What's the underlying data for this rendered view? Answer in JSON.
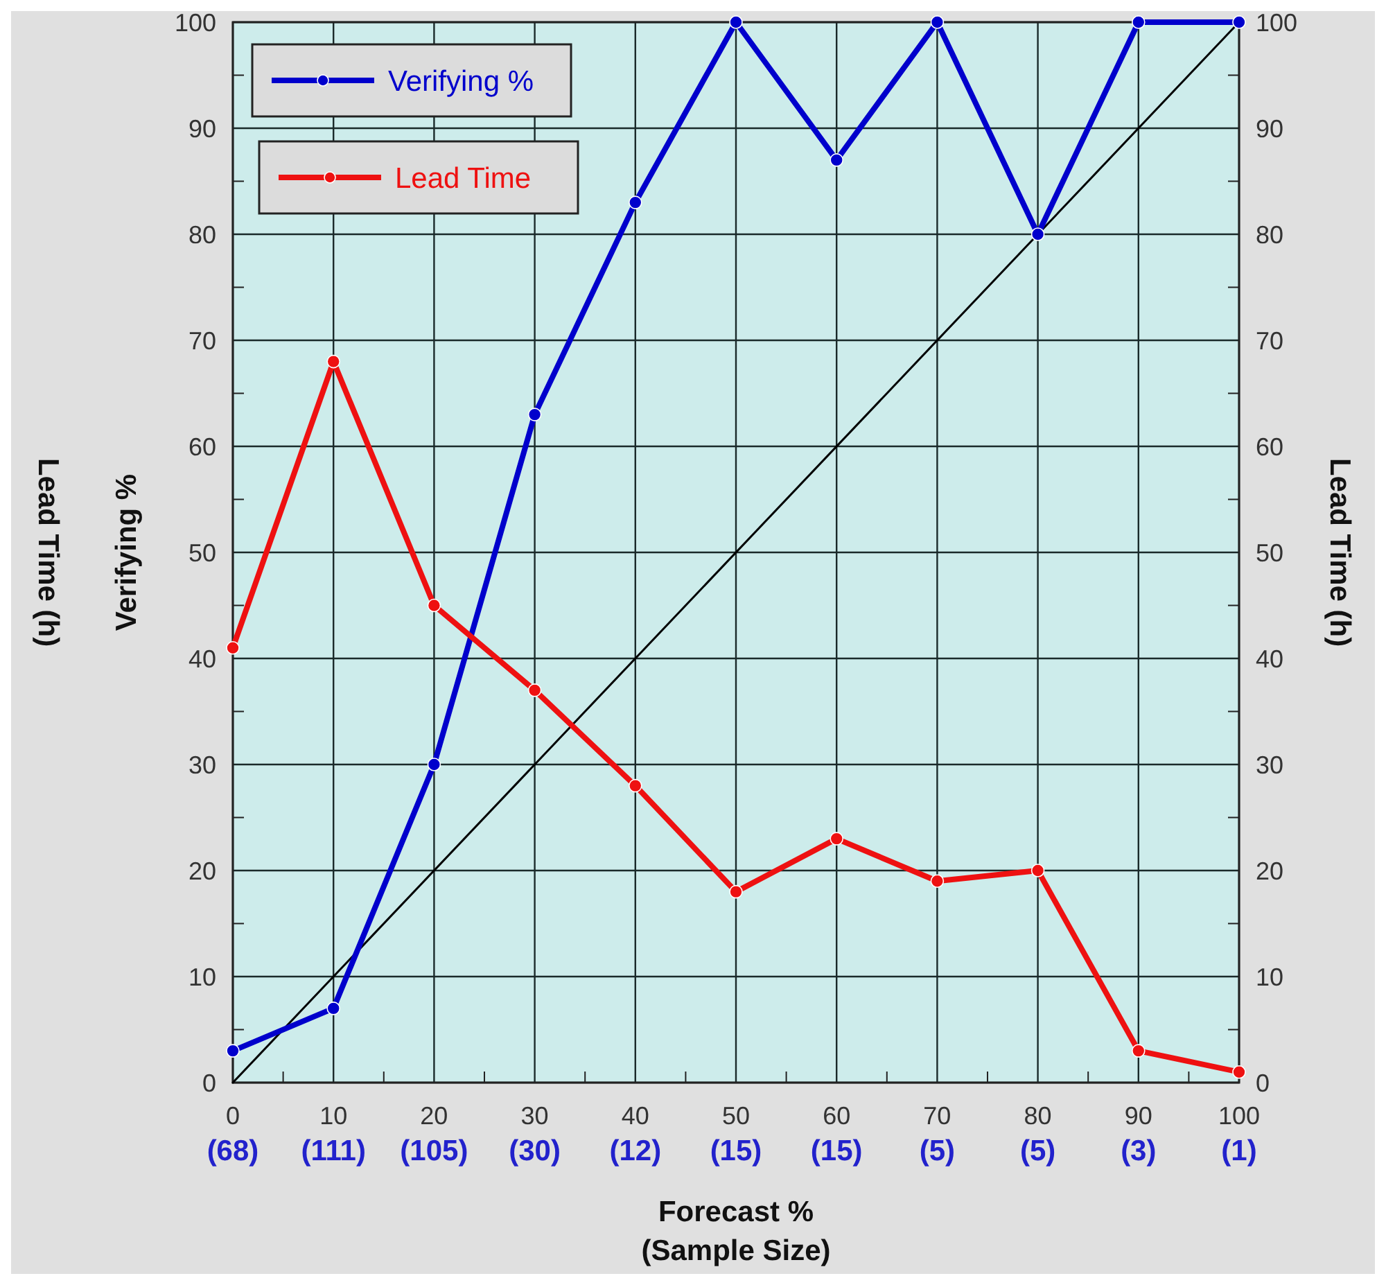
{
  "chart_data": {
    "type": "line",
    "xlabel": "Forecast %\n(Sample Size)",
    "ylabel": "Verifying %",
    "y2label": "Lead Time (h)",
    "annotations": [
      "Lead Time (h)",
      "(68)",
      "(111)",
      "(105)",
      "(30)",
      "(12)",
      "(15)",
      "(15)",
      "(5)",
      "(5)",
      "(3)",
      "(1)"
    ],
    "xlim": [
      0,
      100
    ],
    "ylim": [
      0,
      100
    ],
    "y2lim": [
      0,
      100
    ],
    "xticks": [
      0,
      10,
      20,
      30,
      40,
      50,
      60,
      70,
      80,
      90,
      100
    ],
    "yticks": [
      0,
      10,
      20,
      30,
      40,
      50,
      60,
      70,
      80,
      90,
      100
    ],
    "y2ticks": [
      0,
      10,
      20,
      30,
      40,
      50,
      60,
      70,
      80,
      90,
      100
    ],
    "x": [
      0,
      10,
      20,
      30,
      40,
      50,
      60,
      70,
      80,
      90,
      100
    ],
    "grid": true,
    "legend": "top left",
    "series": [
      {
        "x": [
          0,
          100
        ],
        "values": [
          0,
          100
        ],
        "color": "#000000",
        "marker": "none",
        "line_style": "solid"
      },
      {
        "name": "Verifying %",
        "color": "#0000cc",
        "values": [
          3,
          7,
          30,
          63,
          83,
          100,
          87,
          100,
          80,
          100,
          100
        ],
        "marker": "circle",
        "line_style": "solid"
      },
      {
        "name": "Lead Time",
        "color": "#ee1111",
        "values": [
          41,
          68,
          45,
          37,
          28,
          18,
          23,
          19,
          20,
          3,
          1
        ],
        "marker": "circle",
        "line_style": "solid"
      }
    ]
  }
}
